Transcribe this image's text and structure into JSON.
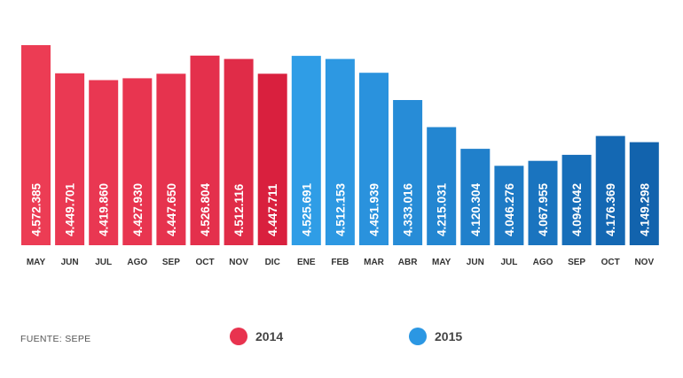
{
  "source_label": "FUENTE: SEPE",
  "legend": [
    {
      "label": "2014",
      "color": "#e8334f"
    },
    {
      "label": "2015",
      "color": "#2b97e3"
    }
  ],
  "chart_data": {
    "type": "bar",
    "title": "",
    "xlabel": "",
    "ylabel": "",
    "grid": false,
    "legend_position": "bottom",
    "categories": [
      "MAY",
      "JUN",
      "JUL",
      "AGO",
      "SEP",
      "OCT",
      "NOV",
      "DIC",
      "ENE",
      "FEB",
      "MAR",
      "ABR",
      "MAY",
      "JUN",
      "JUL",
      "AGO",
      "SEP",
      "OCT",
      "NOV"
    ],
    "values": [
      4572385,
      4449701,
      4419860,
      4427930,
      4447650,
      4526804,
      4512116,
      4447711,
      4525691,
      4512153,
      4451939,
      4333016,
      4215031,
      4120304,
      4046276,
      4067955,
      4094042,
      4176369,
      4149298
    ],
    "value_labels": [
      "4.572.385",
      "4.449.701",
      "4.419.860",
      "4.427.930",
      "4.447.650",
      "4.526.804",
      "4.512.116",
      "4.447.711",
      "4.525.691",
      "4.512.153",
      "4.451.939",
      "4.333.016",
      "4.215.031",
      "4.120.304",
      "4.046.276",
      "4.067.955",
      "4.094.042",
      "4.176.369",
      "4.149.298"
    ],
    "year_of_bar": [
      "2014",
      "2014",
      "2014",
      "2014",
      "2014",
      "2014",
      "2014",
      "2014",
      "2015",
      "2015",
      "2015",
      "2015",
      "2015",
      "2015",
      "2015",
      "2015",
      "2015",
      "2015",
      "2015"
    ],
    "bar_colors": [
      "#ec3c54",
      "#ea3953",
      "#e93752",
      "#e83550",
      "#e6334e",
      "#e4304c",
      "#e02c48",
      "#d9203e",
      "#2f9de6",
      "#2d98e2",
      "#2a92dd",
      "#278cd7",
      "#2386d1",
      "#2080cb",
      "#1d7ac5",
      "#1a74bf",
      "#176eb9",
      "#1468b3",
      "#1263ad"
    ],
    "ylim": [
      3700000,
      4572385
    ]
  }
}
